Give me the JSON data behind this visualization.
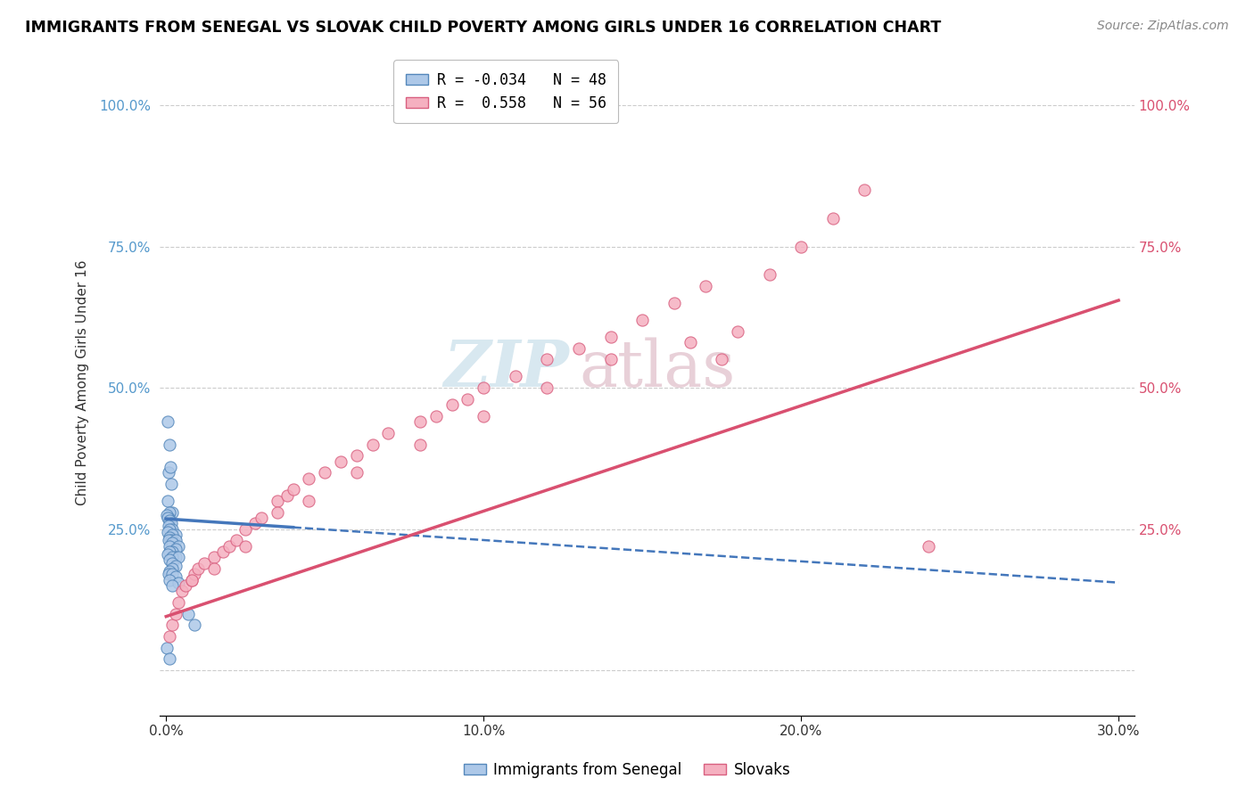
{
  "title": "IMMIGRANTS FROM SENEGAL VS SLOVAK CHILD POVERTY AMONG GIRLS UNDER 16 CORRELATION CHART",
  "source": "Source: ZipAtlas.com",
  "ylabel": "Child Poverty Among Girls Under 16",
  "xlim": [
    -0.002,
    0.305
  ],
  "ylim": [
    -0.08,
    1.1
  ],
  "yticks": [
    0.0,
    0.25,
    0.5,
    0.75,
    1.0
  ],
  "xticks": [
    0.0,
    0.1,
    0.2,
    0.3
  ],
  "xtick_labels": [
    "0.0%",
    "10.0%",
    "20.0%",
    "30.0%"
  ],
  "ytick_labels_left": [
    "",
    "25.0%",
    "50.0%",
    "75.0%",
    "100.0%"
  ],
  "ytick_labels_right": [
    "",
    "25.0%",
    "50.0%",
    "75.0%",
    "100.0%"
  ],
  "watermark_zip": "ZIP",
  "watermark_atlas": "atlas",
  "series1_color": "#adc8e8",
  "series1_edge": "#5588bb",
  "series2_color": "#f5b0c0",
  "series2_edge": "#d96080",
  "trendline1_color": "#4477bb",
  "trendline2_color": "#d95070",
  "legend_R1": "-0.034",
  "legend_N1": "48",
  "legend_R2": "0.558",
  "legend_N2": "56",
  "legend_label1": "Immigrants from Senegal",
  "legend_label2": "Slovaks",
  "senegal_x": [
    0.0005,
    0.001,
    0.0008,
    0.0012,
    0.0015,
    0.0005,
    0.002,
    0.001,
    0.0008,
    0.0003,
    0.0005,
    0.001,
    0.0015,
    0.0008,
    0.002,
    0.001,
    0.0005,
    0.003,
    0.002,
    0.001,
    0.0015,
    0.0008,
    0.003,
    0.002,
    0.001,
    0.004,
    0.003,
    0.002,
    0.001,
    0.0005,
    0.003,
    0.002,
    0.004,
    0.001,
    0.002,
    0.003,
    0.002,
    0.001,
    0.0008,
    0.002,
    0.003,
    0.001,
    0.004,
    0.002,
    0.007,
    0.009,
    0.0003,
    0.001
  ],
  "senegal_y": [
    0.44,
    0.4,
    0.35,
    0.36,
    0.33,
    0.3,
    0.28,
    0.28,
    0.27,
    0.275,
    0.27,
    0.265,
    0.26,
    0.255,
    0.25,
    0.25,
    0.245,
    0.24,
    0.24,
    0.235,
    0.23,
    0.23,
    0.23,
    0.225,
    0.22,
    0.22,
    0.215,
    0.21,
    0.21,
    0.205,
    0.2,
    0.2,
    0.2,
    0.195,
    0.19,
    0.185,
    0.18,
    0.175,
    0.17,
    0.17,
    0.165,
    0.16,
    0.155,
    0.15,
    0.1,
    0.08,
    0.04,
    0.02
  ],
  "slovak_x": [
    0.001,
    0.002,
    0.003,
    0.004,
    0.005,
    0.006,
    0.008,
    0.009,
    0.01,
    0.012,
    0.015,
    0.018,
    0.02,
    0.022,
    0.025,
    0.028,
    0.03,
    0.035,
    0.038,
    0.04,
    0.045,
    0.05,
    0.055,
    0.06,
    0.065,
    0.07,
    0.08,
    0.085,
    0.09,
    0.095,
    0.1,
    0.11,
    0.12,
    0.13,
    0.14,
    0.15,
    0.16,
    0.17,
    0.175,
    0.18,
    0.19,
    0.2,
    0.21,
    0.22,
    0.008,
    0.015,
    0.025,
    0.035,
    0.045,
    0.06,
    0.08,
    0.1,
    0.12,
    0.14,
    0.165,
    0.24
  ],
  "slovak_y": [
    0.06,
    0.08,
    0.1,
    0.12,
    0.14,
    0.15,
    0.16,
    0.17,
    0.18,
    0.19,
    0.2,
    0.21,
    0.22,
    0.23,
    0.25,
    0.26,
    0.27,
    0.3,
    0.31,
    0.32,
    0.34,
    0.35,
    0.37,
    0.38,
    0.4,
    0.42,
    0.44,
    0.45,
    0.47,
    0.48,
    0.5,
    0.52,
    0.55,
    0.57,
    0.59,
    0.62,
    0.65,
    0.68,
    0.55,
    0.6,
    0.7,
    0.75,
    0.8,
    0.85,
    0.16,
    0.18,
    0.22,
    0.28,
    0.3,
    0.35,
    0.4,
    0.45,
    0.5,
    0.55,
    0.58,
    0.22
  ],
  "trendline1_x": [
    0.0,
    0.3
  ],
  "trendline1_y": [
    0.268,
    0.155
  ],
  "trendline2_x": [
    0.0,
    0.3
  ],
  "trendline2_y": [
    0.095,
    0.655
  ]
}
